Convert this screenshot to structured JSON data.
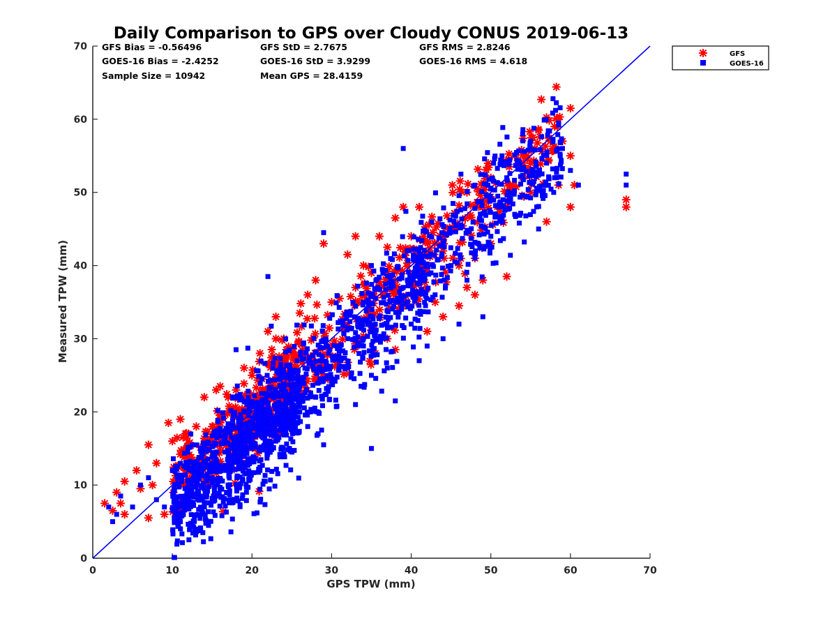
{
  "chart_data": {
    "type": "scatter",
    "title": "Daily Comparison to GPS over Cloudy CONUS 2019-06-13",
    "xlabel": "GPS TPW (mm)",
    "ylabel": "Measured TPW (mm)",
    "xlim": [
      0,
      70
    ],
    "ylim": [
      0,
      70
    ],
    "xticks": [
      0,
      10,
      20,
      30,
      40,
      50,
      60,
      70
    ],
    "yticks": [
      0,
      10,
      20,
      30,
      40,
      50,
      60,
      70
    ],
    "grid": false,
    "legend_position": "outside-top-right",
    "reference_line": {
      "x": [
        0,
        70
      ],
      "y": [
        0,
        70
      ],
      "color": "#0000ff"
    },
    "stats": {
      "gfs_bias": "GFS Bias = -0.56496",
      "gfs_std": "GFS StD = 2.7675",
      "gfs_rms": "GFS RMS = 2.8246",
      "goes_bias": "GOES-16 Bias = -2.4252",
      "goes_std": "GOES-16 StD = 3.9299",
      "goes_rms": "GOES-16 RMS = 4.618",
      "sample_size": "Sample Size = 10942",
      "mean_gps": "Mean GPS = 28.4159"
    },
    "series": [
      {
        "name": "GFS",
        "marker": "asterisk",
        "color": "#ff0000",
        "points": [
          [
            1.5,
            7.5
          ],
          [
            2.5,
            6.5
          ],
          [
            3,
            9
          ],
          [
            3.5,
            7.5
          ],
          [
            4,
            10.5
          ],
          [
            4,
            6
          ],
          [
            5.5,
            12
          ],
          [
            6,
            9.5
          ],
          [
            7,
            15.5
          ],
          [
            7,
            5.5
          ],
          [
            7.5,
            10
          ],
          [
            8,
            13
          ],
          [
            9,
            6
          ],
          [
            9.5,
            18.5
          ],
          [
            10,
            16
          ],
          [
            11,
            19
          ],
          [
            11,
            7
          ],
          [
            12,
            17
          ],
          [
            13,
            18
          ],
          [
            14,
            22
          ],
          [
            15,
            18
          ],
          [
            15.5,
            23
          ],
          [
            16,
            23.5
          ],
          [
            16,
            19
          ],
          [
            17,
            22
          ],
          [
            18,
            23
          ],
          [
            19,
            26
          ],
          [
            20,
            25
          ],
          [
            21,
            28
          ],
          [
            22,
            31
          ],
          [
            23,
            30
          ],
          [
            23,
            33
          ],
          [
            24,
            30
          ],
          [
            26,
            33.5
          ],
          [
            27,
            36
          ],
          [
            28,
            38
          ],
          [
            29,
            43
          ],
          [
            30,
            35
          ],
          [
            31,
            35.5
          ],
          [
            32,
            41.5
          ],
          [
            33,
            44
          ],
          [
            33,
            37
          ],
          [
            34,
            40
          ],
          [
            35,
            39
          ],
          [
            35.5,
            28
          ],
          [
            36,
            44
          ],
          [
            37,
            42.5
          ],
          [
            37,
            30
          ],
          [
            38,
            46.5
          ],
          [
            38,
            28.5
          ],
          [
            39,
            48
          ],
          [
            40,
            44
          ],
          [
            41,
            48
          ],
          [
            42,
            40
          ],
          [
            42,
            31
          ],
          [
            43,
            35
          ],
          [
            44,
            42
          ],
          [
            44,
            33
          ],
          [
            45,
            45
          ],
          [
            46,
            40
          ],
          [
            46,
            34.5
          ],
          [
            47,
            50
          ],
          [
            47,
            37
          ],
          [
            48,
            41
          ],
          [
            48,
            36
          ],
          [
            49,
            48
          ],
          [
            49,
            38
          ],
          [
            50,
            52
          ],
          [
            50,
            43
          ],
          [
            51,
            47
          ],
          [
            52,
            50
          ],
          [
            52,
            38.5
          ],
          [
            53,
            55
          ],
          [
            54,
            52
          ],
          [
            55,
            50
          ],
          [
            55.5,
            56
          ],
          [
            56,
            58.5
          ],
          [
            57,
            46
          ],
          [
            58,
            59
          ],
          [
            58.5,
            51
          ],
          [
            59,
            57
          ],
          [
            60,
            61.5
          ],
          [
            60,
            55
          ],
          [
            60,
            48
          ],
          [
            60.5,
            51
          ],
          [
            67,
            48
          ],
          [
            67,
            49
          ]
        ]
      },
      {
        "name": "GOES-16",
        "marker": "square",
        "color": "#0000ff",
        "points": [
          [
            2,
            7
          ],
          [
            2.5,
            5
          ],
          [
            3,
            6
          ],
          [
            3.5,
            8.5
          ],
          [
            5,
            7
          ],
          [
            6,
            10
          ],
          [
            7,
            11
          ],
          [
            8,
            8
          ],
          [
            9,
            7
          ],
          [
            10,
            12
          ],
          [
            11,
            5
          ],
          [
            12,
            9
          ],
          [
            13,
            10
          ],
          [
            14,
            9.5
          ],
          [
            15,
            11
          ],
          [
            16,
            12
          ],
          [
            17,
            10
          ],
          [
            18,
            8
          ],
          [
            19,
            13
          ],
          [
            20,
            15
          ],
          [
            21,
            12
          ],
          [
            22,
            16
          ],
          [
            23,
            19
          ],
          [
            24,
            17
          ],
          [
            25,
            21
          ],
          [
            26,
            20
          ],
          [
            27,
            18
          ],
          [
            28,
            22
          ],
          [
            29,
            15.5
          ],
          [
            30,
            24
          ],
          [
            31,
            27
          ],
          [
            32,
            26
          ],
          [
            33,
            21
          ],
          [
            34,
            29
          ],
          [
            35,
            15
          ],
          [
            35,
            25
          ],
          [
            36,
            30
          ],
          [
            37,
            26
          ],
          [
            38,
            21.5
          ],
          [
            39,
            56
          ],
          [
            40,
            32
          ],
          [
            41,
            27
          ],
          [
            42,
            29
          ],
          [
            43,
            36
          ],
          [
            44,
            30
          ],
          [
            45,
            40
          ],
          [
            46,
            32
          ],
          [
            47,
            38
          ],
          [
            48,
            41
          ],
          [
            49,
            33
          ],
          [
            50,
            44
          ],
          [
            51,
            48
          ],
          [
            52,
            52
          ],
          [
            53,
            47
          ],
          [
            54,
            58
          ],
          [
            55,
            57
          ],
          [
            56,
            45
          ],
          [
            57,
            54
          ],
          [
            58,
            52
          ],
          [
            59,
            56
          ],
          [
            60,
            53
          ],
          [
            61,
            51
          ],
          [
            67,
            52.5
          ],
          [
            67,
            51
          ],
          [
            18,
            28.5
          ],
          [
            22,
            38.5
          ],
          [
            29,
            44.5
          ],
          [
            35,
            40
          ],
          [
            39.5,
            42
          ],
          [
            44,
            43
          ]
        ]
      }
    ]
  },
  "legend": {
    "gfs_label": "GFS",
    "goes_label": "GOES-16"
  }
}
